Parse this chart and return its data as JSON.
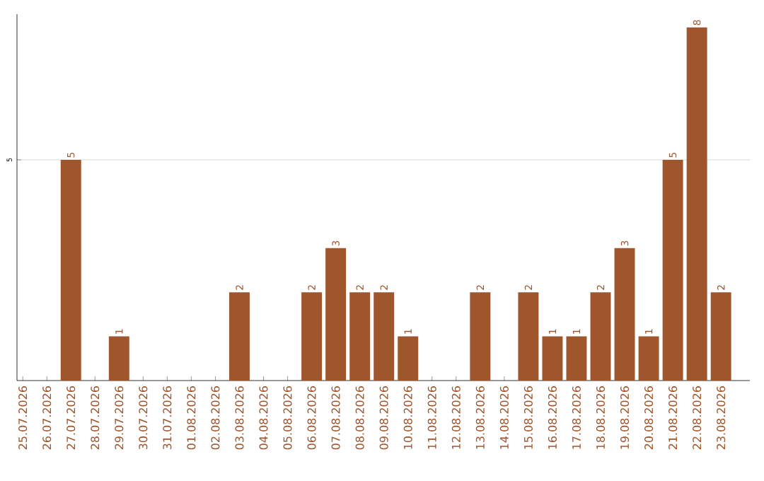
{
  "chart_data": {
    "type": "bar",
    "categories": [
      "25.07.2026",
      "26.07.2026",
      "27.07.2026",
      "28.07.2026",
      "29.07.2026",
      "30.07.2026",
      "31.07.2026",
      "01.08.2026",
      "02.08.2026",
      "03.08.2026",
      "04.08.2026",
      "05.08.2026",
      "06.08.2026",
      "07.08.2026",
      "08.08.2026",
      "09.08.2026",
      "10.08.2026",
      "11.08.2026",
      "12.08.2026",
      "13.08.2026",
      "14.08.2026",
      "15.08.2026",
      "16.08.2026",
      "17.08.2026",
      "18.08.2026",
      "19.08.2026",
      "20.08.2026",
      "21.08.2026",
      "22.08.2026",
      "23.08.2026"
    ],
    "values": [
      0,
      0,
      5,
      0,
      1,
      0,
      0,
      0,
      0,
      2,
      0,
      0,
      2,
      3,
      2,
      2,
      1,
      0,
      0,
      2,
      0,
      2,
      1,
      1,
      2,
      3,
      1,
      5,
      8,
      2
    ],
    "value_labels": [
      null,
      null,
      "5",
      null,
      "1",
      null,
      null,
      null,
      null,
      "2",
      null,
      null,
      "2",
      "3",
      "2",
      "2",
      "1",
      null,
      null,
      "2",
      null,
      "2",
      "1",
      "1",
      "2",
      "3",
      "1",
      "5",
      "8",
      "2"
    ],
    "color": "#a0562c",
    "ylim": [
      0,
      8.3
    ],
    "yticks": [
      5
    ],
    "grid": "y"
  }
}
